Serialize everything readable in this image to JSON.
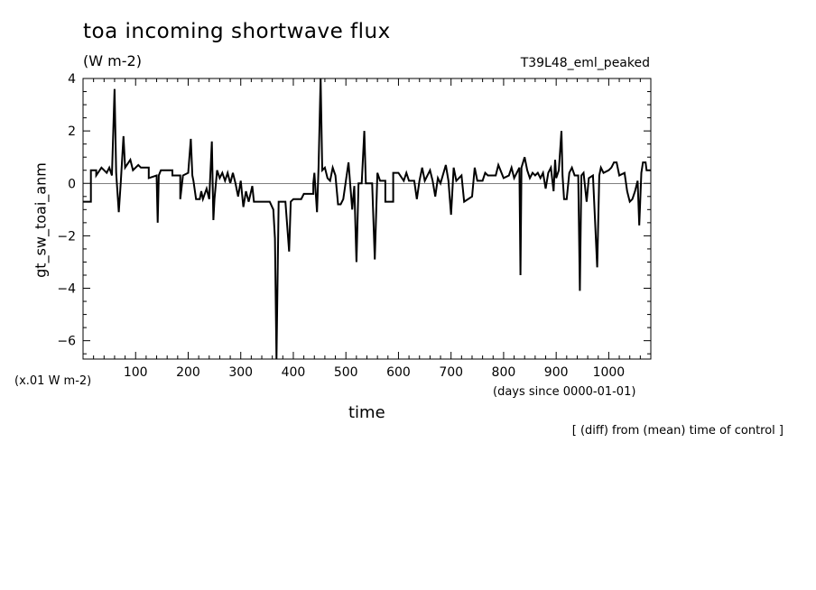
{
  "title": "toa incoming shortwave flux",
  "units_label": "(W m-2)",
  "run_name": "T39L48_eml_peaked",
  "scale_note": "(x.01 W m-2)",
  "x_units": "(days since 0000-01-01)",
  "footnote": "[ (diff) from (mean) time of control ]",
  "chart_data": {
    "type": "line",
    "title": "toa incoming shortwave flux",
    "xlabel": "time",
    "ylabel": "gt_sw_toai_anm",
    "xlim": [
      0,
      1080
    ],
    "ylim": [
      -6.7,
      4
    ],
    "x_ticks": [
      100,
      200,
      300,
      400,
      500,
      600,
      700,
      800,
      900,
      1000
    ],
    "y_ticks": [
      4,
      2,
      0,
      -2,
      -4,
      -6
    ],
    "grid": false,
    "series": [
      {
        "values": [
          [
            0,
            -0.7
          ],
          [
            15,
            -0.7
          ],
          [
            15,
            0.5
          ],
          [
            25,
            0.5
          ],
          [
            25,
            0.3
          ],
          [
            35,
            0.6
          ],
          [
            45,
            0.4
          ],
          [
            50,
            0.6
          ],
          [
            55,
            0.3
          ],
          [
            60,
            3.6
          ],
          [
            63,
            0.4
          ],
          [
            68,
            -1.1
          ],
          [
            72,
            0.1
          ],
          [
            77,
            1.8
          ],
          [
            80,
            0.6
          ],
          [
            90,
            0.9
          ],
          [
            95,
            0.5
          ],
          [
            105,
            0.7
          ],
          [
            110,
            0.6
          ],
          [
            125,
            0.6
          ],
          [
            125,
            0.2
          ],
          [
            140,
            0.3
          ],
          [
            142,
            -1.5
          ],
          [
            144,
            0.3
          ],
          [
            148,
            0.5
          ],
          [
            170,
            0.5
          ],
          [
            170,
            0.3
          ],
          [
            185,
            0.3
          ],
          [
            185,
            -0.6
          ],
          [
            190,
            0.3
          ],
          [
            200,
            0.4
          ],
          [
            205,
            1.7
          ],
          [
            208,
            0.3
          ],
          [
            210,
            0.1
          ],
          [
            215,
            -0.6
          ],
          [
            222,
            -0.6
          ],
          [
            225,
            -0.3
          ],
          [
            228,
            -0.6
          ],
          [
            235,
            -0.2
          ],
          [
            240,
            -0.6
          ],
          [
            245,
            1.6
          ],
          [
            248,
            -1.4
          ],
          [
            250,
            -0.6
          ],
          [
            255,
            0.5
          ],
          [
            260,
            0.2
          ],
          [
            265,
            0.4
          ],
          [
            270,
            0.1
          ],
          [
            275,
            0.4
          ],
          [
            280,
            0.0
          ],
          [
            285,
            0.4
          ],
          [
            290,
            0.0
          ],
          [
            295,
            -0.5
          ],
          [
            300,
            0.1
          ],
          [
            305,
            -0.9
          ],
          [
            310,
            -0.3
          ],
          [
            315,
            -0.7
          ],
          [
            322,
            -0.1
          ],
          [
            325,
            -0.7
          ],
          [
            355,
            -0.7
          ],
          [
            362,
            -1.0
          ],
          [
            365,
            -2.1
          ],
          [
            368,
            -6.7
          ],
          [
            372,
            -0.7
          ],
          [
            385,
            -0.7
          ],
          [
            392,
            -2.6
          ],
          [
            395,
            -0.7
          ],
          [
            400,
            -0.6
          ],
          [
            415,
            -0.6
          ],
          [
            420,
            -0.4
          ],
          [
            438,
            -0.4
          ],
          [
            438,
            0.0
          ],
          [
            440,
            0.4
          ],
          [
            445,
            -1.1
          ],
          [
            448,
            0.6
          ],
          [
            452,
            4.0
          ],
          [
            455,
            0.5
          ],
          [
            460,
            0.6
          ],
          [
            465,
            0.2
          ],
          [
            470,
            0.1
          ],
          [
            475,
            0.6
          ],
          [
            480,
            0.3
          ],
          [
            485,
            -0.8
          ],
          [
            490,
            -0.8
          ],
          [
            495,
            -0.6
          ],
          [
            500,
            0.1
          ],
          [
            505,
            0.8
          ],
          [
            508,
            0.0
          ],
          [
            512,
            -1.0
          ],
          [
            516,
            -0.1
          ],
          [
            520,
            -3.0
          ],
          [
            524,
            0.0
          ],
          [
            530,
            0.0
          ],
          [
            535,
            2.0
          ],
          [
            538,
            0.0
          ],
          [
            545,
            0.0
          ],
          [
            550,
            0.0
          ],
          [
            555,
            -2.9
          ],
          [
            560,
            0.4
          ],
          [
            565,
            0.1
          ],
          [
            575,
            0.1
          ],
          [
            575,
            -0.7
          ],
          [
            590,
            -0.7
          ],
          [
            590,
            0.4
          ],
          [
            600,
            0.4
          ],
          [
            610,
            0.1
          ],
          [
            615,
            0.4
          ],
          [
            620,
            0.1
          ],
          [
            630,
            0.1
          ],
          [
            635,
            -0.6
          ],
          [
            640,
            0.1
          ],
          [
            645,
            0.6
          ],
          [
            650,
            0.1
          ],
          [
            660,
            0.5
          ],
          [
            665,
            0.1
          ],
          [
            670,
            -0.5
          ],
          [
            675,
            0.2
          ],
          [
            680,
            0.0
          ],
          [
            690,
            0.7
          ],
          [
            695,
            0.1
          ],
          [
            700,
            -1.2
          ],
          [
            705,
            0.6
          ],
          [
            710,
            0.1
          ],
          [
            720,
            0.3
          ],
          [
            725,
            -0.7
          ],
          [
            740,
            -0.5
          ],
          [
            745,
            0.6
          ],
          [
            750,
            0.1
          ],
          [
            760,
            0.1
          ],
          [
            765,
            0.4
          ],
          [
            770,
            0.3
          ],
          [
            785,
            0.3
          ],
          [
            790,
            0.7
          ],
          [
            800,
            0.2
          ],
          [
            810,
            0.3
          ],
          [
            815,
            0.6
          ],
          [
            820,
            0.2
          ],
          [
            830,
            0.6
          ],
          [
            832,
            -3.5
          ],
          [
            834,
            0.6
          ],
          [
            840,
            1.0
          ],
          [
            845,
            0.5
          ],
          [
            850,
            0.2
          ],
          [
            855,
            0.4
          ],
          [
            860,
            0.3
          ],
          [
            865,
            0.4
          ],
          [
            870,
            0.2
          ],
          [
            875,
            0.4
          ],
          [
            880,
            -0.2
          ],
          [
            885,
            0.4
          ],
          [
            890,
            0.6
          ],
          [
            895,
            -0.3
          ],
          [
            898,
            0.9
          ],
          [
            900,
            0.2
          ],
          [
            905,
            0.5
          ],
          [
            910,
            2.0
          ],
          [
            912,
            0.3
          ],
          [
            915,
            -0.6
          ],
          [
            920,
            -0.6
          ],
          [
            925,
            0.4
          ],
          [
            930,
            0.6
          ],
          [
            935,
            0.3
          ],
          [
            942,
            0.3
          ],
          [
            945,
            -4.1
          ],
          [
            948,
            0.3
          ],
          [
            952,
            0.4
          ],
          [
            958,
            -0.7
          ],
          [
            962,
            0.2
          ],
          [
            970,
            0.3
          ],
          [
            978,
            -3.2
          ],
          [
            982,
            0.3
          ],
          [
            985,
            0.6
          ],
          [
            990,
            0.4
          ],
          [
            1000,
            0.5
          ],
          [
            1005,
            0.6
          ],
          [
            1010,
            0.8
          ],
          [
            1015,
            0.8
          ],
          [
            1020,
            0.3
          ],
          [
            1030,
            0.4
          ],
          [
            1035,
            -0.3
          ],
          [
            1040,
            -0.7
          ],
          [
            1045,
            -0.6
          ],
          [
            1050,
            -0.3
          ],
          [
            1055,
            0.1
          ],
          [
            1058,
            -1.6
          ],
          [
            1062,
            0.4
          ],
          [
            1065,
            0.8
          ],
          [
            1070,
            0.8
          ],
          [
            1072,
            0.5
          ],
          [
            1080,
            0.5
          ]
        ]
      }
    ]
  }
}
